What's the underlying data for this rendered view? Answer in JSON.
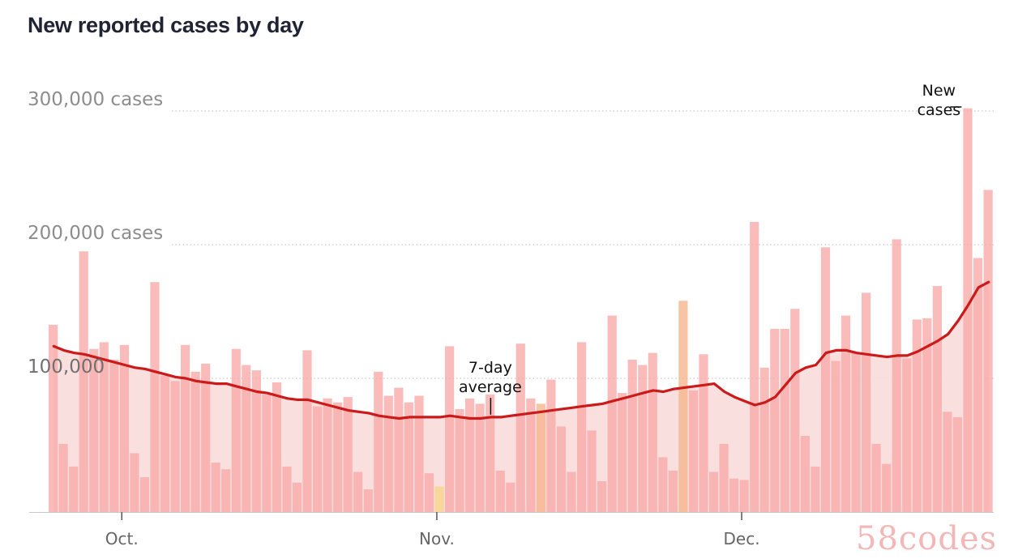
{
  "title": "New reported cases by day",
  "watermark": "58codes",
  "chart_data": {
    "type": "bar",
    "title": "New reported cases by day",
    "xlabel": "",
    "ylabel": "",
    "ylim": [
      0,
      300000
    ],
    "y_ticks": [
      {
        "value": 300000,
        "label": "300,000 cases"
      },
      {
        "value": 200000,
        "label": "200,000 cases"
      },
      {
        "value": 100000,
        "label": "100,000"
      }
    ],
    "x_ticks": [
      {
        "index": 7,
        "label": "Oct."
      },
      {
        "index": 38,
        "label": "Nov."
      },
      {
        "index": 68,
        "label": "Dec."
      }
    ],
    "grid": true,
    "colors": {
      "bar": "#f7a9a7",
      "bar_highlight": "#f9d487",
      "bar_highlight2": "#f5b58a",
      "average_line": "#cc1a1a",
      "average_fill": "#f9dcdb",
      "grid": "#bdbdbd"
    },
    "series": [
      {
        "name": "New cases",
        "kind": "bar",
        "values": [
          140000,
          51000,
          34000,
          195000,
          122000,
          127000,
          114000,
          125000,
          44000,
          26000,
          172000,
          102000,
          98000,
          125000,
          105000,
          111000,
          37000,
          32000,
          122000,
          110000,
          106000,
          88000,
          97000,
          34000,
          22000,
          121000,
          79000,
          85000,
          82000,
          86000,
          30000,
          17000,
          105000,
          87000,
          93000,
          82000,
          87000,
          29000,
          19000,
          124000,
          77000,
          85000,
          81000,
          88000,
          31000,
          22000,
          126000,
          85000,
          81000,
          99000,
          64000,
          30000,
          127000,
          61000,
          23000,
          147000,
          89000,
          114000,
          110000,
          119000,
          41000,
          31000,
          158000,
          91000,
          118000,
          30000,
          51000,
          25000,
          24000,
          217000,
          108000,
          137000,
          137000,
          152000,
          57000,
          34000,
          198000,
          113000,
          147000,
          119000,
          164000,
          51000,
          36000,
          204000,
          115000,
          144000,
          145000,
          169000,
          75000,
          71000,
          302000,
          190000,
          241000
        ],
        "highlight": {
          "38": "bar_highlight",
          "48": "bar_highlight2",
          "62": "bar_highlight2"
        }
      },
      {
        "name": "7-day average",
        "kind": "line",
        "values": [
          124000,
          121000,
          119000,
          118000,
          116000,
          114000,
          112000,
          110000,
          108000,
          107000,
          105000,
          103000,
          101000,
          100000,
          98000,
          97000,
          96000,
          96000,
          94000,
          92000,
          90000,
          89000,
          87000,
          85000,
          84000,
          84000,
          82000,
          80000,
          78000,
          76000,
          75000,
          74000,
          72000,
          71000,
          70000,
          71000,
          71000,
          71000,
          71000,
          72000,
          71000,
          70000,
          70000,
          71000,
          71000,
          72000,
          73000,
          74000,
          75000,
          76000,
          77000,
          78000,
          79000,
          80000,
          81000,
          83000,
          85000,
          87000,
          89000,
          91000,
          90000,
          92000,
          93000,
          94000,
          95000,
          96000,
          90000,
          86000,
          83000,
          80000,
          82000,
          86000,
          95000,
          104000,
          108000,
          110000,
          119000,
          121000,
          121000,
          119000,
          118000,
          117000,
          116000,
          117000,
          117000,
          120000,
          124000,
          128000,
          133000,
          143000,
          155000,
          168000,
          172000
        ]
      }
    ],
    "annotations": [
      {
        "lines": [
          "7-day",
          "average"
        ],
        "target_series": "7-day average",
        "index": 43
      },
      {
        "lines": [
          "New",
          "cases"
        ],
        "target_series": "New cases",
        "index": 90
      }
    ]
  }
}
